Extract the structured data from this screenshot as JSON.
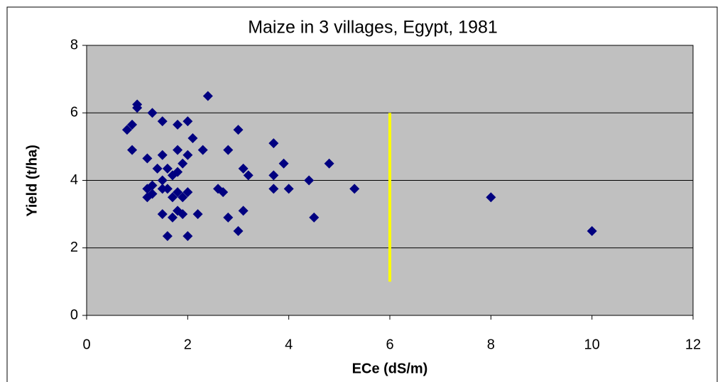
{
  "chart_data": {
    "type": "scatter",
    "title": "Maize in 3 villages, Egypt, 1981",
    "x_label": "ECe (dS/m)",
    "y_label": "Yield (t/ha)",
    "xlim": [
      0,
      12
    ],
    "xticks": [
      0,
      2,
      4,
      6,
      8,
      10,
      12
    ],
    "ylim": [
      0,
      8
    ],
    "yticks": [
      0,
      2,
      4,
      6,
      8
    ],
    "grid": true,
    "background": "#c0c0c0",
    "series": [
      {
        "color": "#000080",
        "x": [
          0.8,
          0.9,
          1.0,
          1.0,
          0.9,
          1.3,
          1.5,
          1.2,
          1.5,
          1.4,
          1.6,
          1.8,
          1.8,
          2.0,
          2.1,
          2.3,
          2.4,
          2.0,
          1.9,
          1.8,
          1.7,
          1.5,
          1.3,
          1.2,
          1.2,
          1.3,
          1.5,
          1.6,
          1.7,
          1.8,
          1.9,
          2.0,
          1.8,
          1.9,
          1.5,
          1.7,
          2.2,
          1.6,
          2.0,
          2.6,
          2.7,
          2.8,
          2.8,
          3.0,
          3.1,
          3.2,
          3.1,
          3.0,
          3.7,
          3.9,
          3.7,
          3.7,
          4.0,
          4.4,
          4.8,
          4.5,
          5.3,
          8.0,
          10.0
        ],
        "values": [
          5.5,
          5.65,
          6.25,
          6.15,
          4.9,
          6.0,
          5.75,
          4.65,
          4.75,
          4.35,
          4.35,
          4.9,
          5.65,
          5.75,
          5.25,
          4.9,
          6.5,
          4.75,
          4.5,
          4.25,
          4.15,
          4.0,
          3.85,
          3.75,
          3.5,
          3.6,
          3.75,
          3.75,
          3.5,
          3.65,
          3.5,
          3.65,
          3.1,
          3.0,
          3.0,
          2.9,
          3.0,
          2.35,
          2.35,
          3.75,
          3.65,
          2.9,
          4.9,
          5.5,
          4.35,
          4.15,
          3.1,
          2.5,
          5.1,
          4.5,
          4.15,
          3.75,
          3.75,
          4.0,
          4.5,
          2.9,
          3.75,
          3.5,
          2.5
        ]
      }
    ],
    "lines": [
      {
        "color": "#ffff00",
        "x": 6,
        "y": [
          1,
          6
        ]
      }
    ]
  }
}
